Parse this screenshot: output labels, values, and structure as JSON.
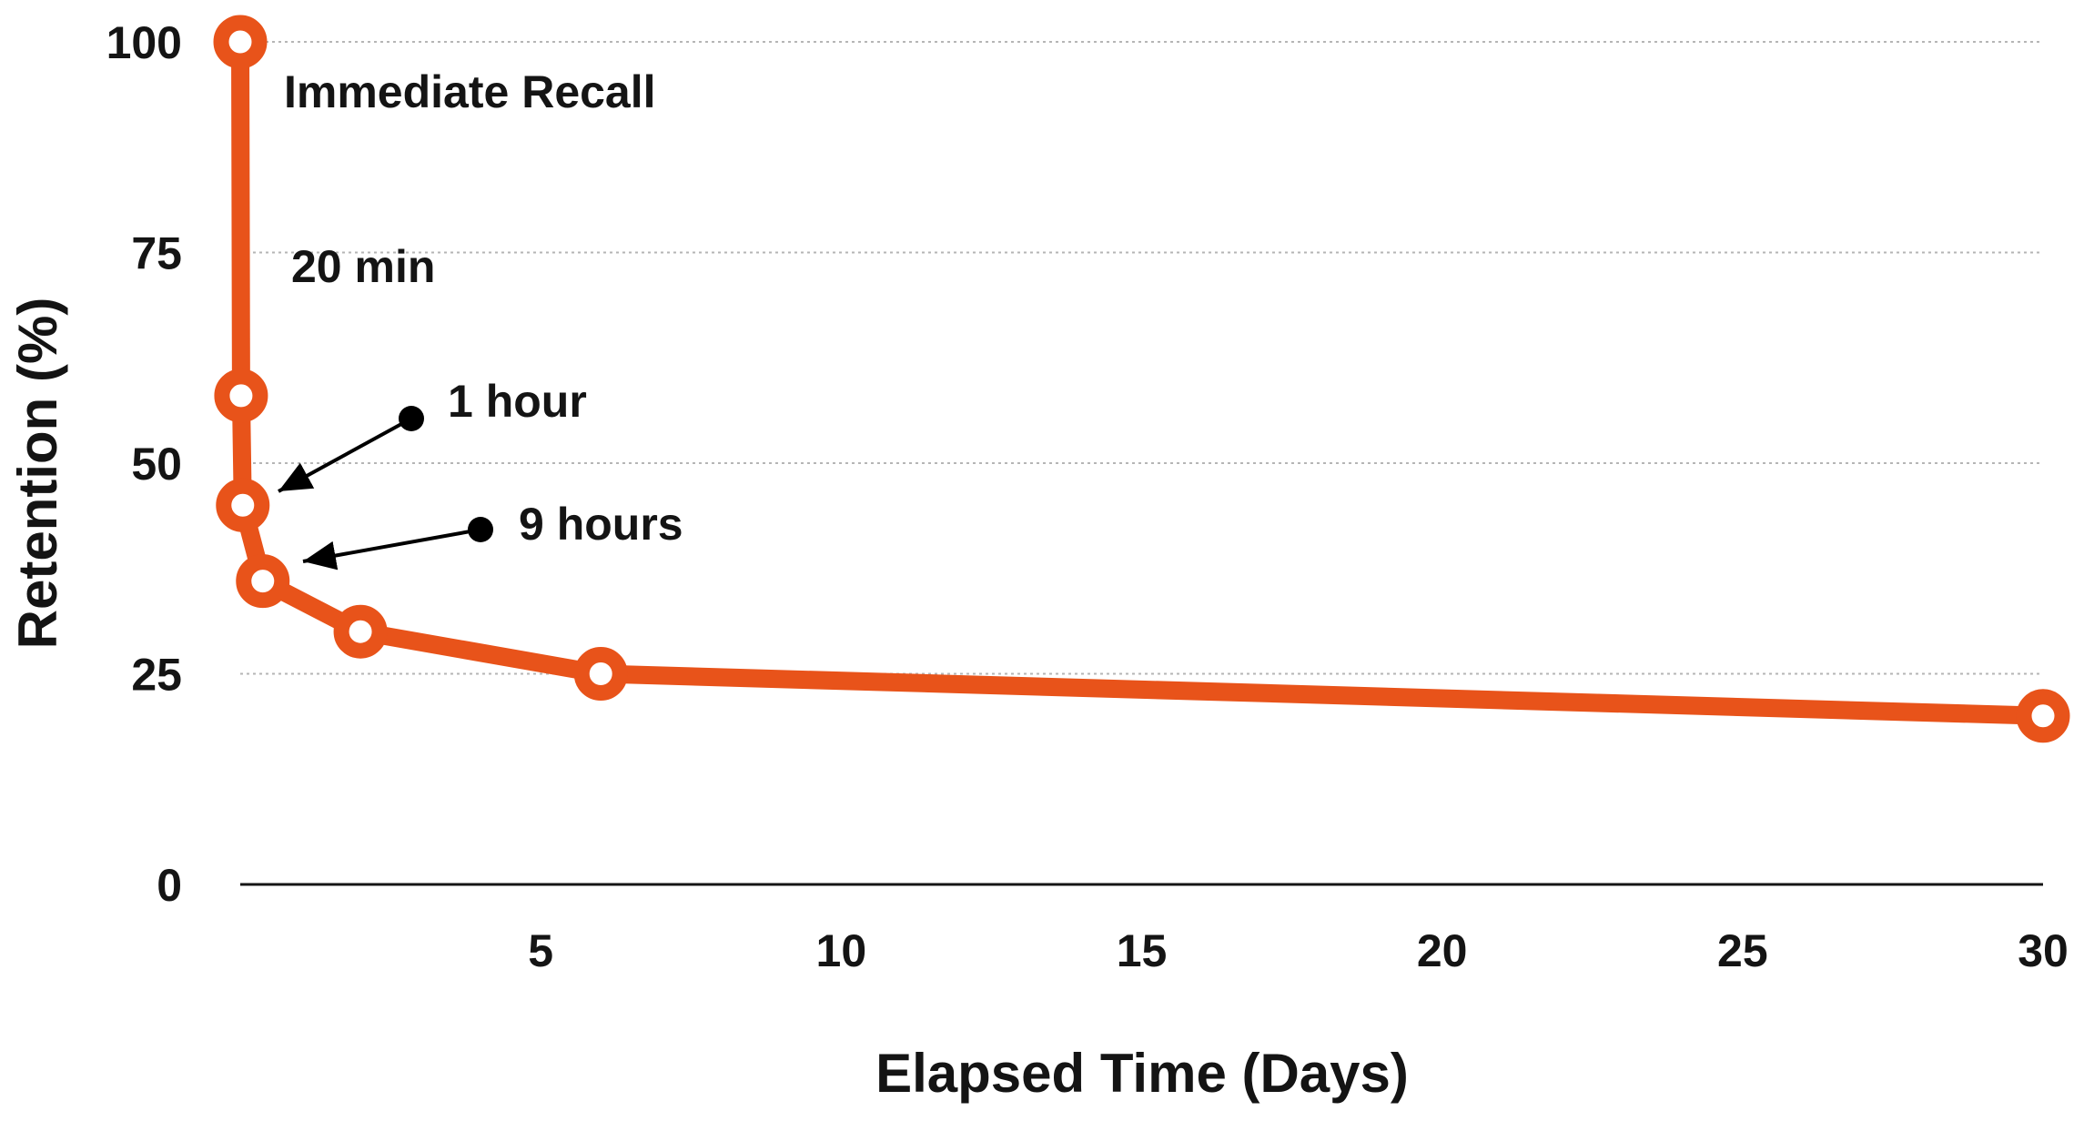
{
  "chart_data": {
    "type": "line",
    "title": "",
    "xlabel": "Elapsed Time (Days)",
    "ylabel": "Retention (%)",
    "xlim": [
      0,
      30
    ],
    "ylim": [
      0,
      100
    ],
    "x_ticks": [
      5,
      10,
      15,
      20,
      25,
      30
    ],
    "y_ticks": [
      0,
      25,
      50,
      75,
      100
    ],
    "grid": "horizontal dotted",
    "legend": "none",
    "series": [
      {
        "color": "#e8531a",
        "points": [
          {
            "x": 0,
            "y": 100
          },
          {
            "x": 0.014,
            "y": 58
          },
          {
            "x": 0.042,
            "y": 45
          },
          {
            "x": 0.375,
            "y": 36
          },
          {
            "x": 2,
            "y": 30
          },
          {
            "x": 6,
            "y": 25
          },
          {
            "x": 30,
            "y": 20
          }
        ]
      }
    ],
    "annotations": [
      {
        "id": "immediate",
        "text": "Immediate Recall",
        "points_to": {
          "x": 0,
          "y": 100
        },
        "arrow": false
      },
      {
        "id": "twenty-min",
        "text": "20 min",
        "points_to": {
          "x": 0.014,
          "y": 58
        },
        "arrow": false
      },
      {
        "id": "one-hour",
        "text": "1 hour",
        "points_to": {
          "x": 0.042,
          "y": 45
        },
        "arrow": true
      },
      {
        "id": "nine-hours",
        "text": "9 hours",
        "points_to": {
          "x": 0.375,
          "y": 36
        },
        "arrow": true
      }
    ],
    "colors": {
      "line": "#e8531a",
      "marker_fill": "#ffffff",
      "text": "#141414",
      "grid": "#b5b5b5",
      "arrow": "#000000"
    }
  }
}
